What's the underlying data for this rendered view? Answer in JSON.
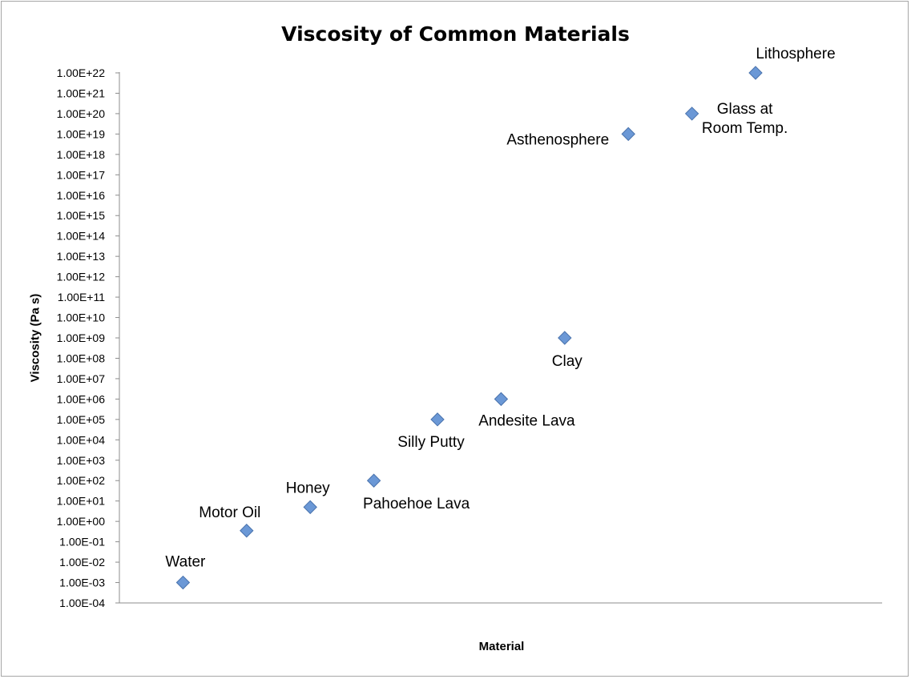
{
  "chart_data": {
    "type": "scatter",
    "title": "Viscosity of Common Materials",
    "xlabel": "Material",
    "ylabel": "Viscosity (Pa s)",
    "y_scale": "log",
    "ylim_exponent": [
      -4,
      22
    ],
    "grid": false,
    "legend": "none",
    "marker_color": "#6b98d6",
    "marker_stroke": "#4a73ad",
    "y_tick_labels": [
      "1.00E-04",
      "1.00E-03",
      "1.00E-02",
      "1.00E-01",
      "1.00E+00",
      "1.00E+01",
      "1.00E+02",
      "1.00E+03",
      "1.00E+04",
      "1.00E+05",
      "1.00E+06",
      "1.00E+07",
      "1.00E+08",
      "1.00E+09",
      "1.00E+10",
      "1.00E+11",
      "1.00E+12",
      "1.00E+13",
      "1.00E+14",
      "1.00E+15",
      "1.00E+16",
      "1.00E+17",
      "1.00E+18",
      "1.00E+19",
      "1.00E+20",
      "1.00E+21",
      "1.00E+22"
    ],
    "points": [
      {
        "label": "Water",
        "x": 1,
        "y": 0.001
      },
      {
        "label": "Motor Oil",
        "x": 2,
        "y": 0.35
      },
      {
        "label": "Honey",
        "x": 3,
        "y": 5
      },
      {
        "label": "Pahoehoe Lava",
        "x": 4,
        "y": 100
      },
      {
        "label": "Silly Putty",
        "x": 5,
        "y": 100000
      },
      {
        "label": "Andesite Lava",
        "x": 6,
        "y": 1000000
      },
      {
        "label": "Clay",
        "x": 7,
        "y": 1000000000
      },
      {
        "label": "Asthenosphere",
        "x": 8,
        "y": 1e+19
      },
      {
        "label": "Glass at Room Temp.",
        "x": 9,
        "y": 1e+20
      },
      {
        "label": "Lithosphere",
        "x": 10,
        "y": 1e+22
      }
    ]
  }
}
